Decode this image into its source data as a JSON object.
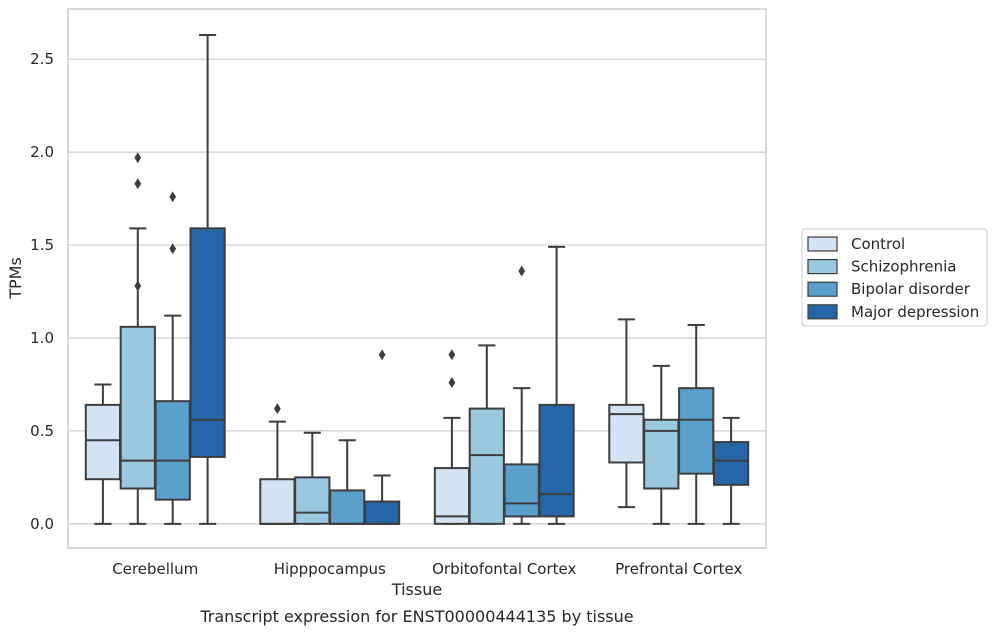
{
  "chart_data": {
    "type": "boxplot",
    "caption": "Transcript expression for ENST00000444135 by tissue",
    "xlabel": "Tissue",
    "ylabel": "TPMs",
    "ylim": [
      -0.13,
      2.77
    ],
    "yticks": [
      "0.0",
      "0.5",
      "1.0",
      "1.5",
      "2.0",
      "2.5"
    ],
    "ytick_values": [
      0.0,
      0.5,
      1.0,
      1.5,
      2.0,
      2.5
    ],
    "grid": true,
    "legend_position": "right",
    "categories": [
      "Cerebellum",
      "Hipppocampus",
      "Orbitofontal Cortex",
      "Prefrontal Cortex"
    ],
    "series": [
      {
        "name": "Control",
        "color": "#d2e3f3",
        "boxes": [
          {
            "whislo": 0.0,
            "q1": 0.24,
            "med": 0.45,
            "q3": 0.64,
            "whishi": 0.75,
            "fliers": []
          },
          {
            "whislo": 0.0,
            "q1": 0.0,
            "med": 0.0,
            "q3": 0.24,
            "whishi": 0.55,
            "fliers": [
              0.62
            ]
          },
          {
            "whislo": 0.0,
            "q1": 0.0,
            "med": 0.04,
            "q3": 0.3,
            "whishi": 0.57,
            "fliers": [
              0.76,
              0.91
            ]
          },
          {
            "whislo": 0.09,
            "q1": 0.33,
            "med": 0.59,
            "q3": 0.64,
            "whishi": 1.1,
            "fliers": []
          }
        ]
      },
      {
        "name": "Schizophrenia",
        "color": "#9ac8e0",
        "boxes": [
          {
            "whislo": 0.0,
            "q1": 0.19,
            "med": 0.34,
            "q3": 1.06,
            "whishi": 1.59,
            "fliers": [
              1.28,
              1.83,
              1.97
            ]
          },
          {
            "whislo": 0.0,
            "q1": 0.0,
            "med": 0.06,
            "q3": 0.25,
            "whishi": 0.49,
            "fliers": []
          },
          {
            "whislo": 0.0,
            "q1": 0.0,
            "med": 0.37,
            "q3": 0.62,
            "whishi": 0.96,
            "fliers": []
          },
          {
            "whislo": 0.0,
            "q1": 0.19,
            "med": 0.5,
            "q3": 0.56,
            "whishi": 0.85,
            "fliers": []
          }
        ]
      },
      {
        "name": "Bipolar disorder",
        "color": "#5aa0cd",
        "boxes": [
          {
            "whislo": 0.0,
            "q1": 0.13,
            "med": 0.34,
            "q3": 0.66,
            "whishi": 1.12,
            "fliers": [
              1.48,
              1.76
            ]
          },
          {
            "whislo": 0.0,
            "q1": 0.0,
            "med": 0.0,
            "q3": 0.18,
            "whishi": 0.45,
            "fliers": []
          },
          {
            "whislo": 0.0,
            "q1": 0.04,
            "med": 0.11,
            "q3": 0.32,
            "whishi": 0.73,
            "fliers": [
              1.36
            ]
          },
          {
            "whislo": 0.0,
            "q1": 0.27,
            "med": 0.56,
            "q3": 0.73,
            "whishi": 1.07,
            "fliers": []
          }
        ]
      },
      {
        "name": "Major depression",
        "color": "#2666a8",
        "boxes": [
          {
            "whislo": 0.0,
            "q1": 0.36,
            "med": 0.56,
            "q3": 1.59,
            "whishi": 2.63,
            "fliers": []
          },
          {
            "whislo": 0.0,
            "q1": 0.0,
            "med": 0.0,
            "q3": 0.12,
            "whishi": 0.26,
            "fliers": [
              0.91
            ]
          },
          {
            "whislo": 0.0,
            "q1": 0.04,
            "med": 0.16,
            "q3": 0.64,
            "whishi": 1.49,
            "fliers": []
          },
          {
            "whislo": 0.0,
            "q1": 0.21,
            "med": 0.34,
            "q3": 0.44,
            "whishi": 0.57,
            "fliers": []
          }
        ]
      }
    ]
  },
  "colors": {
    "grid": "#cccccc",
    "frame": "#cccccc",
    "box_edge": "#3d3d3d",
    "text": "#262626"
  }
}
